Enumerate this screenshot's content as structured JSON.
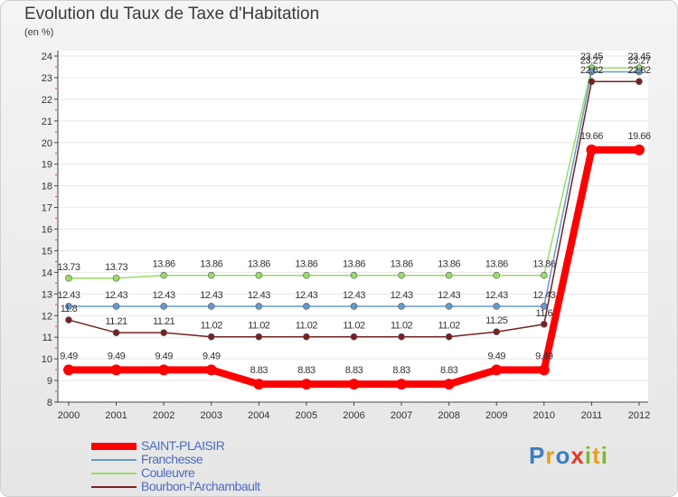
{
  "chart_data": {
    "type": "line",
    "title": "Evolution du Taux de Taxe d'Habitation",
    "ylabel": "(en %)",
    "xlabel": "",
    "ylim": [
      8,
      24
    ],
    "yticks": [
      "8",
      "9",
      "10",
      "11",
      "12",
      "13",
      "14",
      "15",
      "16",
      "17",
      "18",
      "19",
      "20",
      "21",
      "22",
      "23",
      "24"
    ],
    "categories": [
      "2000",
      "2001",
      "2002",
      "2003",
      "2004",
      "2005",
      "2006",
      "2007",
      "2008",
      "2009",
      "2010",
      "2011",
      "2012"
    ],
    "series": [
      {
        "name": "Couleuvre",
        "color": "#99dd66",
        "values": [
          13.73,
          13.73,
          13.86,
          13.86,
          13.86,
          13.86,
          13.86,
          13.86,
          13.86,
          13.86,
          13.86,
          23.45,
          23.45
        ],
        "labels": [
          "13.73",
          "13.73",
          "13.86",
          "13.86",
          "13.86",
          "13.86",
          "13.86",
          "13.86",
          "13.86",
          "13.86",
          "13.86",
          "23.45",
          "23.45"
        ]
      },
      {
        "name": "Franchesse",
        "color": "#6699cc",
        "values": [
          12.43,
          12.43,
          12.43,
          12.43,
          12.43,
          12.43,
          12.43,
          12.43,
          12.43,
          12.43,
          12.43,
          23.27,
          23.27
        ],
        "labels": [
          "12.43",
          "12.43",
          "12.43",
          "12.43",
          "12.43",
          "12.43",
          "12.43",
          "12.43",
          "12.43",
          "12.43",
          "12.43",
          "23.27",
          "23.27"
        ]
      },
      {
        "name": "Bourbon-l'Archambault",
        "color": "#772222",
        "values": [
          11.8,
          11.21,
          11.21,
          11.02,
          11.02,
          11.02,
          11.02,
          11.02,
          11.02,
          11.25,
          11.6,
          22.82,
          22.82
        ],
        "labels": [
          "11.8",
          "11.21",
          "11.21",
          "11.02",
          "11.02",
          "11.02",
          "11.02",
          "11.02",
          "11.02",
          "11.25",
          "11.6",
          "22.82",
          "22.82"
        ]
      },
      {
        "name": "SAINT-PLAISIR",
        "color": "#ff0000",
        "values": [
          9.49,
          9.49,
          9.49,
          9.49,
          8.83,
          8.83,
          8.83,
          8.83,
          8.83,
          9.49,
          9.49,
          19.66,
          19.66
        ],
        "labels": [
          "9.49",
          "9.49",
          "9.49",
          "9.49",
          "8.83",
          "8.83",
          "8.83",
          "8.83",
          "8.83",
          "9.49",
          "9.49",
          "19.66",
          "19.66"
        ]
      }
    ]
  },
  "legend": [
    {
      "name": "SAINT-PLAISIR",
      "color": "#ff0000"
    },
    {
      "name": "Franchesse",
      "color": "#6699cc"
    },
    {
      "name": "Couleuvre",
      "color": "#99dd66"
    },
    {
      "name": "Bourbon-l'Archambault",
      "color": "#772222"
    }
  ],
  "logo": {
    "letters": [
      "P",
      "r",
      "o",
      "x",
      "i",
      "t",
      "i"
    ]
  }
}
